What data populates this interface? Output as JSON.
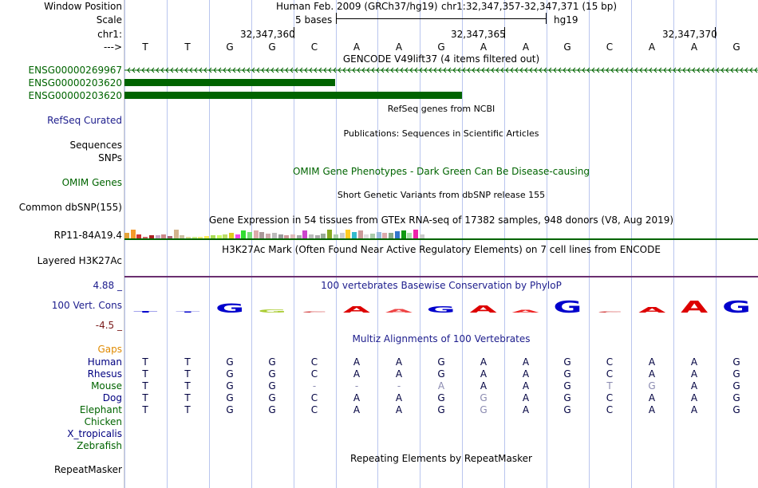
{
  "header": {
    "window_position_label": "Window Position",
    "scale_label": "Scale",
    "chrom_label": "chr1:",
    "strand_label": "--->",
    "assembly": "Human Feb. 2009 (GRCh37/hg19)",
    "position": "chr1:32,347,357-32,347,371 (15 bp)",
    "scale_text": "5 bases",
    "db": "hg19",
    "coords": [
      "32,347,360",
      "32,347,365",
      "32,347,370"
    ]
  },
  "bases": [
    "T",
    "T",
    "G",
    "G",
    "C",
    "A",
    "A",
    "G",
    "A",
    "A",
    "G",
    "C",
    "A",
    "A",
    "G"
  ],
  "gencode": {
    "title": "GENCODE V49lift37 (4 items filtered out)",
    "items": [
      "ENSG00000269967",
      "ENSG00000203620",
      "ENSG00000203620"
    ],
    "color": "#006400"
  },
  "tracks": {
    "refseq_title": "RefSeq genes from NCBI",
    "refseq_label": "RefSeq Curated",
    "pubs_title": "Publications: Sequences in Scientific Articles",
    "pubs_label": "Sequences",
    "snps_label": "SNPs",
    "omim_title": "OMIM Gene Phenotypes - Dark Green Can Be Disease-causing",
    "omim_label": "OMIM Genes",
    "dbsnp_title": "Short Genetic Variants from dbSNP release 155",
    "dbsnp_label": "Common dbSNP(155)",
    "gtex_title": "Gene Expression in 54 tissues from GTEx RNA-seq of 17382 samples, 948 donors (V8, Aug 2019)",
    "gtex_label": "RP11-84A19.4",
    "h3k27_title": "H3K27Ac Mark (Often Found Near Active Regulatory Elements) on 7 cell lines from ENCODE",
    "h3k27_label": "Layered H3K27Ac",
    "cons_title": "100 vertebrates Basewise Conservation by PhyloP",
    "cons_label": "100 Vert. Cons",
    "cons_max": "4.88 _",
    "cons_min": "-4.5 _",
    "multiz_title": "Multiz Alignments of 100 Vertebrates",
    "gaps_label": "Gaps",
    "repeat_title": "Repeating Elements by RepeatMasker",
    "repeat_label": "RepeatMasker"
  },
  "gtex_values": [
    0.55,
    0.9,
    0.4,
    0.2,
    0.35,
    0.3,
    0.45,
    0.25,
    0.95,
    0.3,
    0.2,
    0.15,
    0.2,
    0.25,
    0.35,
    0.3,
    0.45,
    0.6,
    0.45,
    0.8,
    0.65,
    0.85,
    0.7,
    0.5,
    0.55,
    0.4,
    0.35,
    0.45,
    0.3,
    0.8,
    0.4,
    0.35,
    0.5,
    0.95,
    0.45,
    0.55,
    0.9,
    0.7,
    0.8,
    0.45,
    0.5,
    0.7,
    0.55,
    0.55,
    0.75,
    0.8,
    0.6,
    0.95,
    0.4
  ],
  "gtex_colors": [
    "#e5a43a",
    "#f59a2a",
    "#cc3333",
    "#cc6666",
    "#aa2222",
    "#c8a8c8",
    "#cc8888",
    "#aa6677",
    "#d3b48c",
    "#ccc0a0",
    "#dddd99",
    "#ccee88",
    "#eeee77",
    "#ffee55",
    "#aadd55",
    "#ccff66",
    "#bbdd66",
    "#ddcc22",
    "#ee44ee",
    "#33dd33",
    "#77dd77",
    "#ddaaaa",
    "#aa9999",
    "#ccaaaa",
    "#bbbbbb",
    "#999999",
    "#cc9999",
    "#ddbbbb",
    "#aaaaaa",
    "#cc44cc",
    "#bbbbbb",
    "#aaaaaa",
    "#99aa99",
    "#88aa22",
    "#aaccaa",
    "#cccccc",
    "#ffcc22",
    "#33bbcc",
    "#cc9999",
    "#dddddd",
    "#aaccaa",
    "#99bbdd",
    "#ddaaaa",
    "#88aa88",
    "#3377cc",
    "#119911",
    "#aaddaa",
    "#ee22aa",
    "#cccccc"
  ],
  "conservation_letters": [
    {
      "ch": "T",
      "color": "#0000cc",
      "scale": 0.15
    },
    {
      "ch": "T",
      "color": "#0000cc",
      "scale": 0.0
    },
    {
      "ch": "G",
      "color": "#0000cc",
      "scale": 0.8
    },
    {
      "ch": "G",
      "color": "#aacc33",
      "scale": 0.25
    },
    {
      "ch": "C",
      "color": "#cc2222",
      "scale": 0.1
    },
    {
      "ch": "A",
      "color": "#dd0000",
      "scale": 0.55
    },
    {
      "ch": "A",
      "color": "#ee4444",
      "scale": 0.3
    },
    {
      "ch": "G",
      "color": "#0000cc",
      "scale": 0.55
    },
    {
      "ch": "A",
      "color": "#dd0000",
      "scale": 0.6
    },
    {
      "ch": "A",
      "color": "#ee2222",
      "scale": 0.2
    },
    {
      "ch": "G",
      "color": "#0000cc",
      "scale": 1.0
    },
    {
      "ch": "C",
      "color": "#cc2222",
      "scale": 0.0
    },
    {
      "ch": "A",
      "color": "#dd0000",
      "scale": 0.5
    },
    {
      "ch": "A",
      "color": "#dd0000",
      "scale": 1.0
    },
    {
      "ch": "G",
      "color": "#0000cc",
      "scale": 1.0
    }
  ],
  "species": [
    {
      "name": "Human",
      "color": "#000080",
      "seq": [
        "T",
        "T",
        "G",
        "G",
        "C",
        "A",
        "A",
        "G",
        "A",
        "A",
        "G",
        "C",
        "A",
        "A",
        "G"
      ]
    },
    {
      "name": "Rhesus",
      "color": "#000080",
      "seq": [
        "T",
        "T",
        "G",
        "G",
        "C",
        "A",
        "A",
        "G",
        "A",
        "A",
        "G",
        "C",
        "A",
        "A",
        "G"
      ]
    },
    {
      "name": "Mouse",
      "color": "#006400",
      "seq": [
        "T",
        "T",
        "G",
        "G",
        "-",
        "-",
        "-",
        "A",
        "A",
        "A",
        "G",
        "T",
        "G",
        "A",
        "G"
      ]
    },
    {
      "name": "Dog",
      "color": "#000080",
      "seq": [
        "T",
        "T",
        "G",
        "G",
        "C",
        "A",
        "A",
        "G",
        "G",
        "A",
        "G",
        "C",
        "A",
        "A",
        "G"
      ]
    },
    {
      "name": "Elephant",
      "color": "#006400",
      "seq": [
        "T",
        "T",
        "G",
        "G",
        "C",
        "A",
        "A",
        "G",
        "G",
        "A",
        "G",
        "C",
        "A",
        "A",
        "G"
      ]
    },
    {
      "name": "Chicken",
      "color": "#006400",
      "seq": []
    },
    {
      "name": "X_tropicalis",
      "color": "#000080",
      "seq": []
    },
    {
      "name": "Zebrafish",
      "color": "#006400",
      "seq": []
    }
  ],
  "mismatch": {
    "Mouse": [
      4,
      5,
      6,
      7,
      11,
      12
    ],
    "Dog": [
      8
    ],
    "Elephant": [
      8
    ]
  }
}
